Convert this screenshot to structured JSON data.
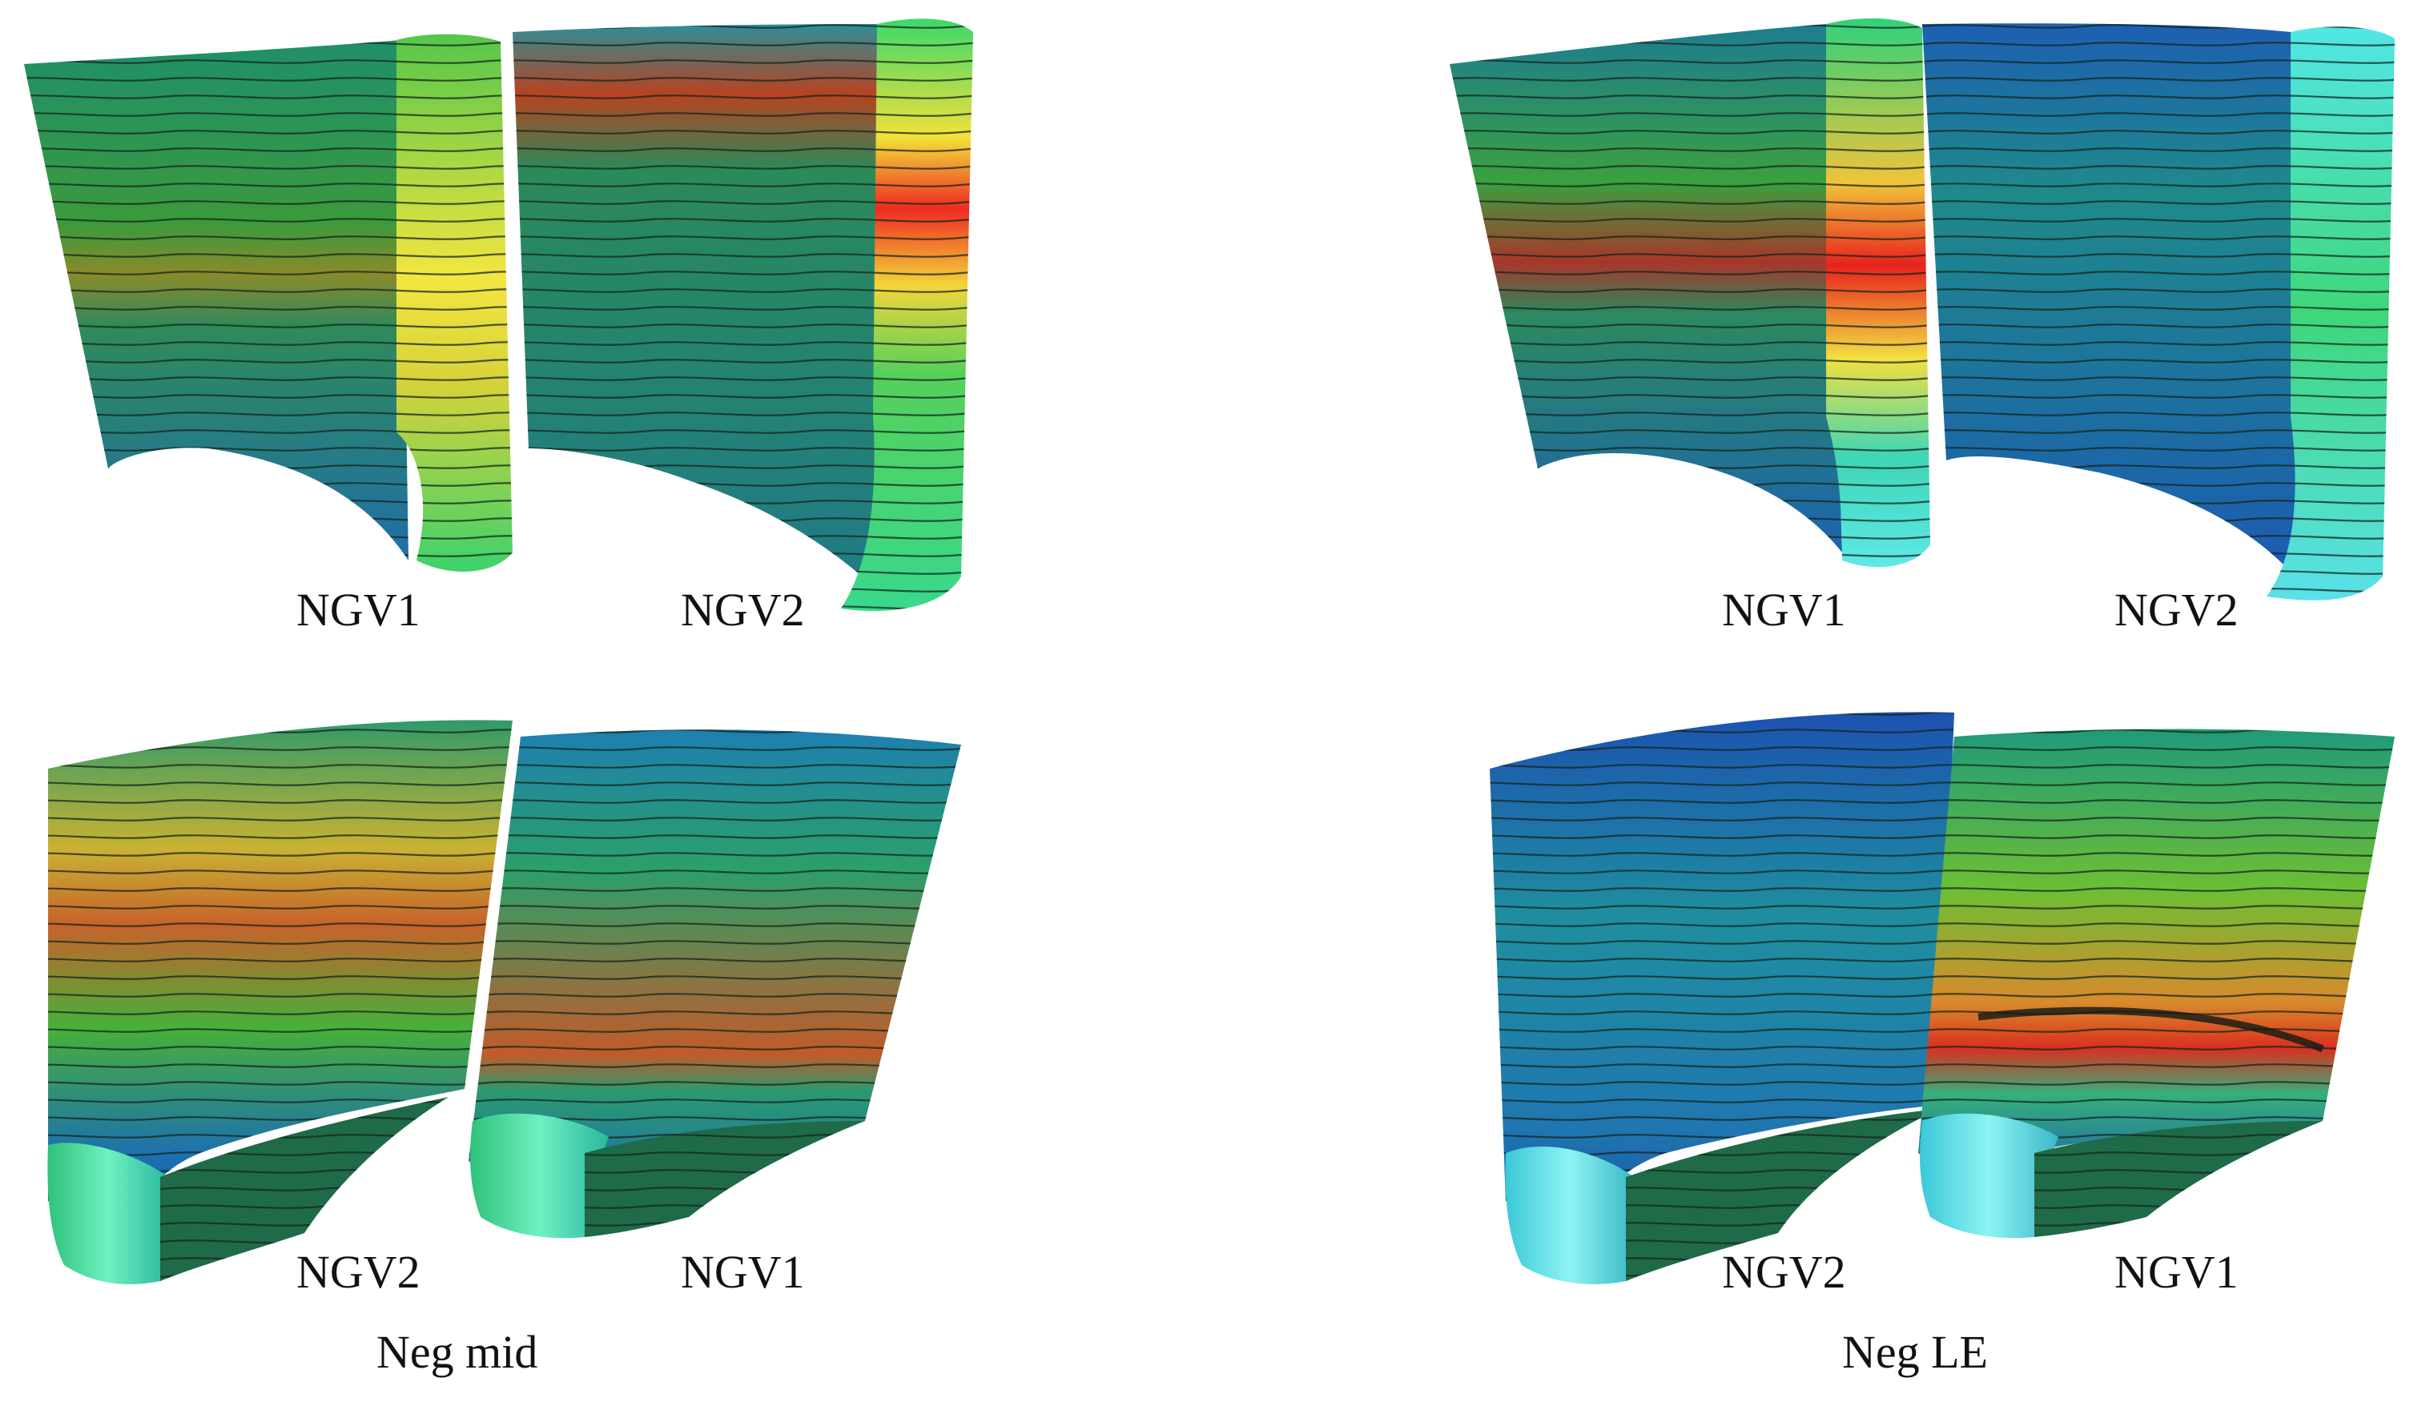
{
  "panels": [
    {
      "id": "neg-mid-top",
      "left_label": "NGV1",
      "right_label": "NGV2"
    },
    {
      "id": "neg-le-top",
      "left_label": "NGV1",
      "right_label": "NGV2"
    },
    {
      "id": "neg-mid-bottom",
      "left_label": "NGV2",
      "right_label": "NGV1"
    },
    {
      "id": "neg-le-bottom",
      "left_label": "NGV2",
      "right_label": "NGV1"
    }
  ],
  "captions": {
    "left": "Neg mid",
    "right": "Neg LE"
  },
  "colors": {
    "low": "#1a4fa8",
    "mid_low": "#1fa3a0",
    "mid": "#2e9a52",
    "mid_high": "#e8e23a",
    "high": "#e5261f",
    "streamline": "#1b2a22"
  }
}
